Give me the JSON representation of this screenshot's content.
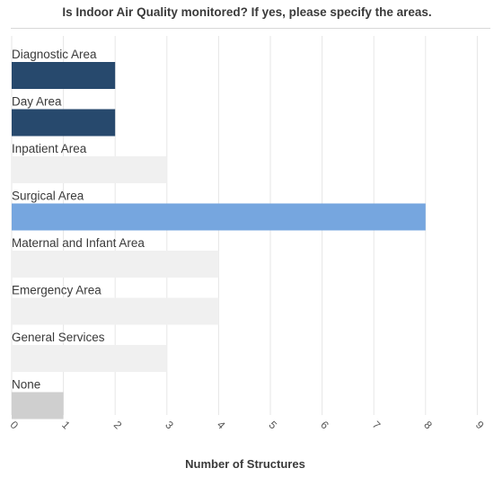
{
  "chart_data": {
    "type": "bar",
    "orientation": "horizontal",
    "title": "Is Indoor Air Quality monitored? If yes, please specify the areas.",
    "xlabel": "Number of Structures",
    "ylabel": "",
    "categories": [
      "Diagnostic Area",
      "Day Area",
      "Inpatient Area",
      "Surgical Area",
      "Maternal and Infant Area",
      "Emergency Area",
      "General Services",
      "None"
    ],
    "values": [
      2,
      2,
      3,
      8,
      4,
      4,
      3,
      1
    ],
    "bar_colors": [
      "#27496d",
      "#27496d",
      "#f0f0f0",
      "#76a6df",
      "#f0f0f0",
      "#f0f0f0",
      "#f0f0f0",
      "#cfcfcf"
    ],
    "xlim": [
      0,
      9
    ],
    "xticks": [
      "0",
      "1",
      "2",
      "3",
      "4",
      "5",
      "6",
      "7",
      "8",
      "9"
    ],
    "grid": "vertical",
    "legend": "none"
  }
}
